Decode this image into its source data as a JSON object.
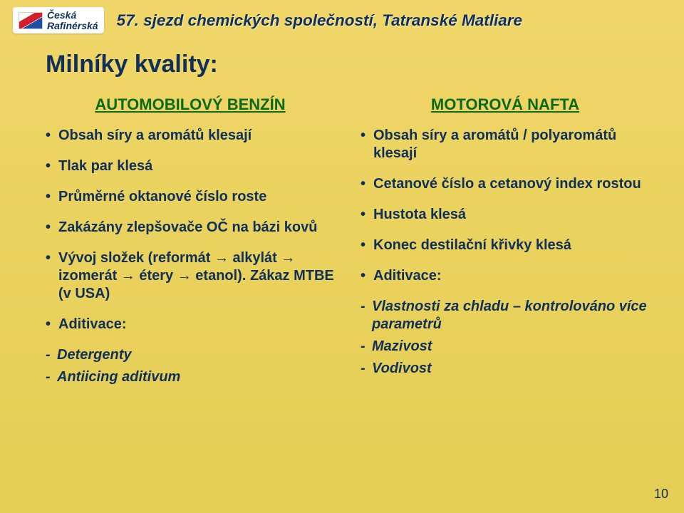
{
  "logo": {
    "line1": "Česká",
    "line2": "Rafinérská"
  },
  "conference_title": "57. sjezd chemických společností, Tatranské Matliare",
  "slide_title": "Milníky kvality:",
  "left": {
    "heading": "AUTOMOBILOVÝ BENZÍN",
    "items": [
      "Obsah síry a aromátů klesají",
      "Tlak par klesá",
      "Průměrné oktanové číslo roste",
      "Zakázány zlepšovače OČ na bázi kovů",
      "Vývoj složek (reformát → alkylát → izomerát → étery → etanol). Zákaz MTBE (v USA)",
      "Aditivace:"
    ],
    "sub": [
      "Detergenty",
      "Antiicing aditivum"
    ]
  },
  "right": {
    "heading": "MOTOROVÁ NAFTA",
    "items": [
      "Obsah síry a aromátů / polyaromátů klesají",
      "Cetanové číslo a cetanový index rostou",
      "Hustota klesá",
      "Konec destilační křivky klesá",
      "Aditivace:"
    ],
    "sub": [
      "Vlastnosti za chladu – kontrolováno více parametrů",
      "Mazivost",
      "Vodivost"
    ]
  },
  "page_number": "10"
}
